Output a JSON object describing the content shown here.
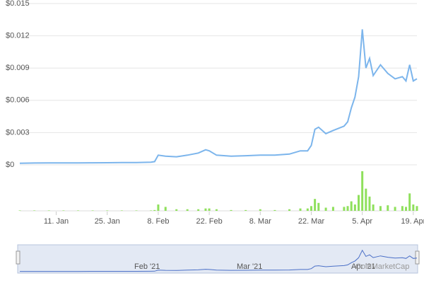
{
  "chart_data": [
    {
      "type": "line",
      "color": "#7cb5ec",
      "grid": true,
      "xlim": [
        "1. Jan",
        "20. Apr"
      ],
      "x": [
        "1. Jan",
        "5. Jan",
        "9. Jan",
        "13. Jan",
        "17. Jan",
        "21. Jan",
        "25. Jan",
        "29. Jan",
        "2. Feb",
        "6. Feb",
        "7. Feb",
        "8. Feb",
        "10. Feb",
        "13. Feb",
        "16. Feb",
        "19. Feb",
        "21. Feb",
        "22. Feb",
        "24. Feb",
        "28. Feb",
        "4. Mar",
        "8. Mar",
        "12. Mar",
        "16. Mar",
        "19. Mar",
        "21. Mar",
        "22. Mar",
        "23. Mar",
        "24. Mar",
        "26. Mar",
        "28. Mar",
        "31. Mar",
        "1. Apr",
        "2. Apr",
        "3. Apr",
        "4. Apr",
        "5. Apr",
        "6. Apr",
        "7. Apr",
        "8. Apr",
        "10. Apr",
        "12. Apr",
        "14. Apr",
        "16. Apr",
        "17. Apr",
        "18. Apr",
        "19. Apr",
        "20. Apr"
      ],
      "values": [
        0.00015,
        0.00017,
        0.00018,
        0.00018,
        0.00018,
        0.00019,
        0.0002,
        0.00021,
        0.00022,
        0.00025,
        0.0003,
        0.0009,
        0.0008,
        0.00075,
        0.0009,
        0.0011,
        0.0014,
        0.0013,
        0.0009,
        0.0008,
        0.00085,
        0.0009,
        0.0009,
        0.001,
        0.0013,
        0.0013,
        0.0018,
        0.0033,
        0.0035,
        0.0029,
        0.0032,
        0.0036,
        0.004,
        0.0053,
        0.0063,
        0.0082,
        0.0126,
        0.009,
        0.0099,
        0.0083,
        0.0093,
        0.0085,
        0.008,
        0.0082,
        0.0078,
        0.0093,
        0.0078,
        0.008
      ],
      "ylim": [
        0,
        0.015
      ],
      "yticks": [
        {
          "value": 0,
          "label": "$0"
        },
        {
          "value": 0.003,
          "label": "$0.003"
        },
        {
          "value": 0.006,
          "label": "$0.006"
        },
        {
          "value": 0.009,
          "label": "$0.009"
        },
        {
          "value": 0.012,
          "label": "$0.012"
        },
        {
          "value": 0.015,
          "label": "$0.015"
        }
      ],
      "xticks": [
        "11. Jan",
        "25. Jan",
        "8. Feb",
        "22. Feb",
        "8. Mar",
        "22. Mar",
        "5. Apr",
        "19. Apr"
      ]
    },
    {
      "type": "bar",
      "color": "#8fe05c",
      "x": [
        "1. Jan",
        "5. Jan",
        "9. Jan",
        "13. Jan",
        "17. Jan",
        "21. Jan",
        "25. Jan",
        "29. Jan",
        "2. Feb",
        "6. Feb",
        "7. Feb",
        "8. Feb",
        "10. Feb",
        "13. Feb",
        "16. Feb",
        "19. Feb",
        "21. Feb",
        "22. Feb",
        "24. Feb",
        "28. Feb",
        "4. Mar",
        "8. Mar",
        "12. Mar",
        "16. Mar",
        "19. Mar",
        "21. Mar",
        "22. Mar",
        "23. Mar",
        "24. Mar",
        "26. Mar",
        "28. Mar",
        "31. Mar",
        "1. Apr",
        "2. Apr",
        "3. Apr",
        "4. Apr",
        "5. Apr",
        "6. Apr",
        "7. Apr",
        "8. Apr",
        "10. Apr",
        "12. Apr",
        "14. Apr",
        "16. Apr",
        "17. Apr",
        "18. Apr",
        "19. Apr",
        "20. Apr"
      ],
      "values": [
        0.5,
        0.5,
        0.5,
        0.5,
        0.5,
        0.5,
        0.5,
        0.5,
        0.5,
        0.5,
        1,
        8,
        5,
        2,
        2,
        2,
        3,
        3,
        2,
        1,
        1,
        2,
        1,
        2,
        3,
        3,
        6,
        15,
        10,
        4,
        5,
        5,
        6,
        12,
        8,
        20,
        50,
        28,
        18,
        8,
        6,
        7,
        5,
        6,
        5,
        22,
        8,
        6
      ]
    }
  ],
  "navigator": {
    "labels": [
      "Feb '21",
      "Mar '21",
      "Apr '21"
    ],
    "watermark": "CoinMarketCap"
  }
}
